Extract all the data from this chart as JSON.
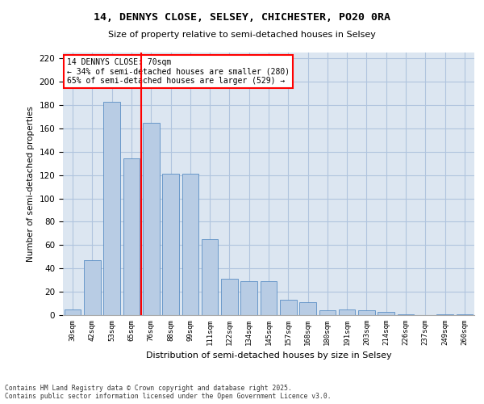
{
  "title_line1": "14, DENNYS CLOSE, SELSEY, CHICHESTER, PO20 0RA",
  "title_line2": "Size of property relative to semi-detached houses in Selsey",
  "xlabel": "Distribution of semi-detached houses by size in Selsey",
  "ylabel": "Number of semi-detached properties",
  "categories": [
    "30sqm",
    "42sqm",
    "53sqm",
    "65sqm",
    "76sqm",
    "88sqm",
    "99sqm",
    "111sqm",
    "122sqm",
    "134sqm",
    "145sqm",
    "157sqm",
    "168sqm",
    "180sqm",
    "191sqm",
    "203sqm",
    "214sqm",
    "226sqm",
    "237sqm",
    "249sqm",
    "260sqm"
  ],
  "values": [
    5,
    47,
    183,
    134,
    165,
    121,
    121,
    65,
    31,
    29,
    29,
    13,
    11,
    4,
    5,
    4,
    3,
    1,
    0,
    1,
    1
  ],
  "bar_color": "#b8cce4",
  "bar_edge_color": "#5b8ec4",
  "grid_color": "#b0c4de",
  "background_color": "#dce6f1",
  "vline_color": "red",
  "vline_position": 3.5,
  "annotation_title": "14 DENNYS CLOSE: 70sqm",
  "annotation_line1": "← 34% of semi-detached houses are smaller (280)",
  "annotation_line2": "65% of semi-detached houses are larger (529) →",
  "annotation_box_color": "white",
  "annotation_box_edge": "red",
  "ylim": [
    0,
    225
  ],
  "yticks": [
    0,
    20,
    40,
    60,
    80,
    100,
    120,
    140,
    160,
    180,
    200,
    220
  ],
  "footer_line1": "Contains HM Land Registry data © Crown copyright and database right 2025.",
  "footer_line2": "Contains public sector information licensed under the Open Government Licence v3.0."
}
